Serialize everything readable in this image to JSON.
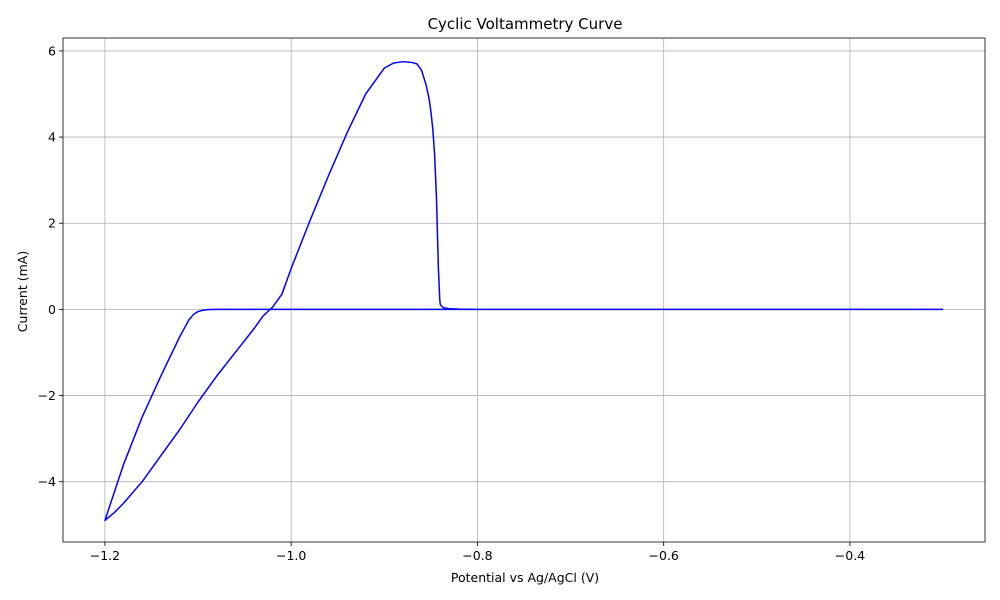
{
  "chart_data": {
    "type": "line",
    "title": "Cyclic Voltammetry Curve",
    "xlabel": "Potential vs Ag/AgCl (V)",
    "ylabel": "Current (mA)",
    "xlim": [
      -1.245,
      -0.255
    ],
    "ylim": [
      -5.4,
      6.3
    ],
    "xticks": [
      -1.2,
      -1.0,
      -0.8,
      -0.6,
      -0.4
    ],
    "xtick_labels": [
      "−1.2",
      "−1.0",
      "−0.8",
      "−0.6",
      "−0.4"
    ],
    "yticks": [
      -4,
      -2,
      0,
      2,
      4,
      6
    ],
    "ytick_labels": [
      "−4",
      "−2",
      "0",
      "2",
      "4",
      "6"
    ],
    "grid": true,
    "line_color": "#0000ff",
    "grid_color": "#b0b0b0",
    "series": [
      {
        "x": [
          -0.3,
          -0.4,
          -0.5,
          -0.6,
          -0.7,
          -0.8,
          -0.82,
          -0.83,
          -0.835,
          -0.838,
          -0.84,
          -0.9,
          -1.0,
          -1.05,
          -1.08,
          -1.09,
          -1.095,
          -1.1,
          -1.105,
          -1.11,
          -1.12,
          -1.14,
          -1.16,
          -1.18,
          -1.2,
          -1.19,
          -1.18,
          -1.16,
          -1.14,
          -1.12,
          -1.1,
          -1.08,
          -1.06,
          -1.04,
          -1.03,
          -1.02,
          -1.01,
          -1.0,
          -0.98,
          -0.96,
          -0.94,
          -0.92,
          -0.9,
          -0.89,
          -0.88,
          -0.87,
          -0.865,
          -0.86,
          -0.855,
          -0.852,
          -0.85,
          -0.848,
          -0.846,
          -0.844,
          -0.843,
          -0.842,
          -0.841,
          -0.8405,
          -0.84,
          -0.838,
          -0.835,
          -0.83,
          -0.82,
          -0.8,
          -0.7,
          -0.6,
          -0.5,
          -0.4,
          -0.3
        ],
        "y": [
          0,
          0,
          0,
          0,
          0,
          0,
          0,
          0,
          0,
          0,
          0,
          0,
          0,
          0,
          0,
          -0.005,
          -0.02,
          -0.05,
          -0.12,
          -0.25,
          -0.65,
          -1.55,
          -2.5,
          -3.6,
          -4.9,
          -4.72,
          -4.5,
          -4.0,
          -3.4,
          -2.8,
          -2.15,
          -1.55,
          -1.0,
          -0.45,
          -0.15,
          0.05,
          0.35,
          0.95,
          2.05,
          3.1,
          4.1,
          5.0,
          5.6,
          5.72,
          5.75,
          5.73,
          5.7,
          5.55,
          5.2,
          4.9,
          4.6,
          4.2,
          3.6,
          2.6,
          1.8,
          1.0,
          0.5,
          0.25,
          0.12,
          0.06,
          0.03,
          0.015,
          0.005,
          0,
          0,
          0,
          0,
          0,
          0
        ]
      }
    ]
  }
}
